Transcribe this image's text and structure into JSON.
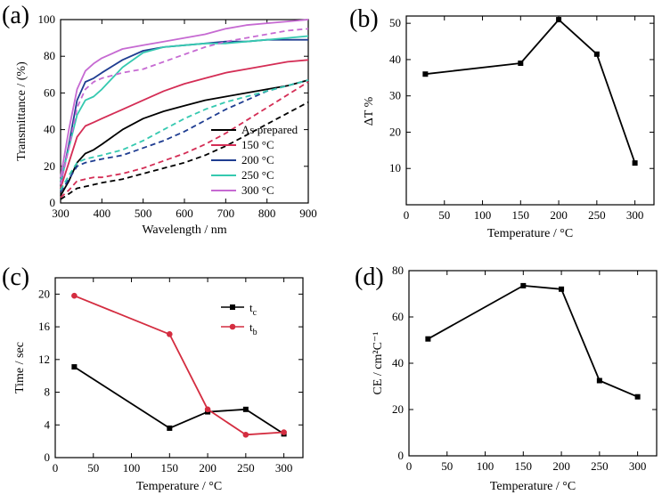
{
  "chart_data": [
    {
      "panel": "(a)",
      "type": "line",
      "xlabel": "Wavelength / nm",
      "ylabel": "Transmittance / (%)",
      "xlim": [
        300,
        900
      ],
      "ylim": [
        0,
        100
      ],
      "xticks": [
        300,
        400,
        500,
        600,
        700,
        800,
        900
      ],
      "yticks": [
        0,
        20,
        40,
        60,
        80,
        100
      ],
      "legend": [
        "As prepared",
        "150 °C",
        "200 °C",
        "250 °C",
        "300 °C"
      ],
      "series": [
        {
          "name": "As prepared",
          "color": "#000000",
          "style": "solid",
          "x": [
            300,
            320,
            340,
            360,
            380,
            400,
            450,
            500,
            550,
            600,
            650,
            700,
            750,
            800,
            850,
            900
          ],
          "y": [
            4,
            12,
            22,
            27,
            29,
            32,
            40,
            46,
            50,
            53,
            56,
            58,
            60,
            62,
            64,
            67
          ]
        },
        {
          "name": "As prepared (colored)",
          "color": "#000000",
          "style": "dashed",
          "x": [
            300,
            320,
            340,
            360,
            380,
            400,
            450,
            500,
            550,
            600,
            650,
            700,
            750,
            800,
            850,
            900
          ],
          "y": [
            2,
            5,
            8,
            9,
            10,
            11,
            13,
            16,
            19,
            22,
            26,
            31,
            37,
            43,
            49,
            55
          ]
        },
        {
          "name": "150 °C",
          "color": "#d42d55",
          "style": "solid",
          "x": [
            300,
            320,
            340,
            360,
            380,
            400,
            450,
            500,
            550,
            600,
            650,
            700,
            750,
            800,
            850,
            900
          ],
          "y": [
            8,
            22,
            36,
            42,
            44,
            46,
            51,
            56,
            61,
            65,
            68,
            71,
            73,
            75,
            77,
            78
          ]
        },
        {
          "name": "150 °C (colored)",
          "color": "#d42d55",
          "style": "dashed",
          "x": [
            300,
            320,
            340,
            360,
            380,
            400,
            450,
            500,
            550,
            600,
            650,
            700,
            750,
            800,
            850,
            900
          ],
          "y": [
            3,
            7,
            12,
            13,
            14,
            14,
            16,
            19,
            23,
            27,
            32,
            38,
            45,
            52,
            59,
            66
          ]
        },
        {
          "name": "200 °C",
          "color": "#1f3d91",
          "style": "solid",
          "x": [
            300,
            320,
            340,
            360,
            380,
            400,
            450,
            500,
            550,
            600,
            650,
            700,
            750,
            800,
            850,
            900
          ],
          "y": [
            10,
            32,
            56,
            66,
            68,
            71,
            78,
            83,
            85,
            86,
            87,
            88,
            88,
            89,
            89,
            89
          ]
        },
        {
          "name": "200 °C (colored)",
          "color": "#1f3d91",
          "style": "dashed",
          "x": [
            300,
            320,
            340,
            360,
            380,
            400,
            450,
            500,
            550,
            600,
            650,
            700,
            750,
            800,
            850,
            900
          ],
          "y": [
            6,
            13,
            20,
            22,
            23,
            24,
            26,
            30,
            34,
            39,
            45,
            51,
            56,
            61,
            64,
            67
          ]
        },
        {
          "name": "250 °C",
          "color": "#35c9b0",
          "style": "solid",
          "x": [
            300,
            320,
            340,
            360,
            380,
            400,
            450,
            500,
            550,
            600,
            650,
            700,
            750,
            800,
            850,
            900
          ],
          "y": [
            12,
            30,
            48,
            56,
            58,
            62,
            74,
            82,
            85,
            86,
            87,
            87,
            88,
            89,
            90,
            91
          ]
        },
        {
          "name": "250 °C (colored)",
          "color": "#35c9b0",
          "style": "dashed",
          "x": [
            300,
            320,
            340,
            360,
            380,
            400,
            450,
            500,
            550,
            600,
            650,
            700,
            750,
            800,
            850,
            900
          ],
          "y": [
            7,
            15,
            22,
            24,
            25,
            26,
            29,
            34,
            40,
            46,
            51,
            55,
            58,
            61,
            64,
            67
          ]
        },
        {
          "name": "300 °C",
          "color": "#c66ad2",
          "style": "solid",
          "x": [
            300,
            320,
            340,
            360,
            380,
            400,
            450,
            500,
            550,
            600,
            650,
            700,
            750,
            800,
            850,
            900
          ],
          "y": [
            14,
            40,
            62,
            72,
            76,
            79,
            84,
            86,
            88,
            90,
            92,
            95,
            97,
            98,
            99,
            100
          ]
        },
        {
          "name": "300 °C (colored)",
          "color": "#c66ad2",
          "style": "dashed",
          "x": [
            300,
            320,
            340,
            360,
            380,
            400,
            450,
            500,
            550,
            600,
            650,
            700,
            750,
            800,
            850,
            900
          ],
          "y": [
            10,
            30,
            52,
            62,
            66,
            68,
            71,
            73,
            77,
            81,
            85,
            88,
            90,
            92,
            94,
            95
          ]
        }
      ]
    },
    {
      "panel": "(b)",
      "type": "line",
      "xlabel": "Temperature / °C",
      "ylabel": "ΔT %",
      "xlim": [
        0,
        325
      ],
      "ylim": [
        0,
        52
      ],
      "xticks": [
        0,
        50,
        100,
        150,
        200,
        250,
        300
      ],
      "yticks": [
        10,
        20,
        30,
        40,
        50
      ],
      "series": [
        {
          "name": "ΔT",
          "color": "#000000",
          "marker": "square",
          "x": [
            25,
            150,
            200,
            250,
            300
          ],
          "y": [
            36,
            39,
            51,
            41.5,
            11.5
          ]
        }
      ]
    },
    {
      "panel": "(c)",
      "type": "line",
      "xlabel": "Temperature / °C",
      "ylabel": "Time / sec",
      "xlim": [
        0,
        325
      ],
      "ylim": [
        0,
        22
      ],
      "xticks": [
        0,
        50,
        100,
        150,
        200,
        250,
        300
      ],
      "yticks": [
        0,
        4,
        8,
        12,
        16,
        20
      ],
      "legend": [
        "t",
        "t"
      ],
      "legend_sub": [
        "c",
        "b"
      ],
      "series": [
        {
          "name": "tc",
          "color": "#000000",
          "marker": "square",
          "x": [
            25,
            150,
            200,
            250,
            300
          ],
          "y": [
            11.1,
            3.6,
            5.6,
            5.9,
            2.9
          ]
        },
        {
          "name": "tb",
          "color": "#d42d40",
          "marker": "circle",
          "x": [
            25,
            150,
            200,
            250,
            300
          ],
          "y": [
            19.8,
            15.1,
            5.9,
            2.8,
            3.1
          ]
        }
      ]
    },
    {
      "panel": "(d)",
      "type": "line",
      "xlabel": "Temperature / °C",
      "ylabel": "CE / cm²C⁻¹",
      "xlim": [
        0,
        325
      ],
      "ylim": [
        0,
        80
      ],
      "xticks": [
        0,
        50,
        100,
        150,
        200,
        250,
        300
      ],
      "yticks": [
        0,
        20,
        40,
        60,
        80
      ],
      "series": [
        {
          "name": "CE",
          "color": "#000000",
          "marker": "square",
          "x": [
            25,
            150,
            200,
            250,
            300
          ],
          "y": [
            50.5,
            73.5,
            72,
            32.5,
            25.5
          ]
        }
      ]
    }
  ]
}
